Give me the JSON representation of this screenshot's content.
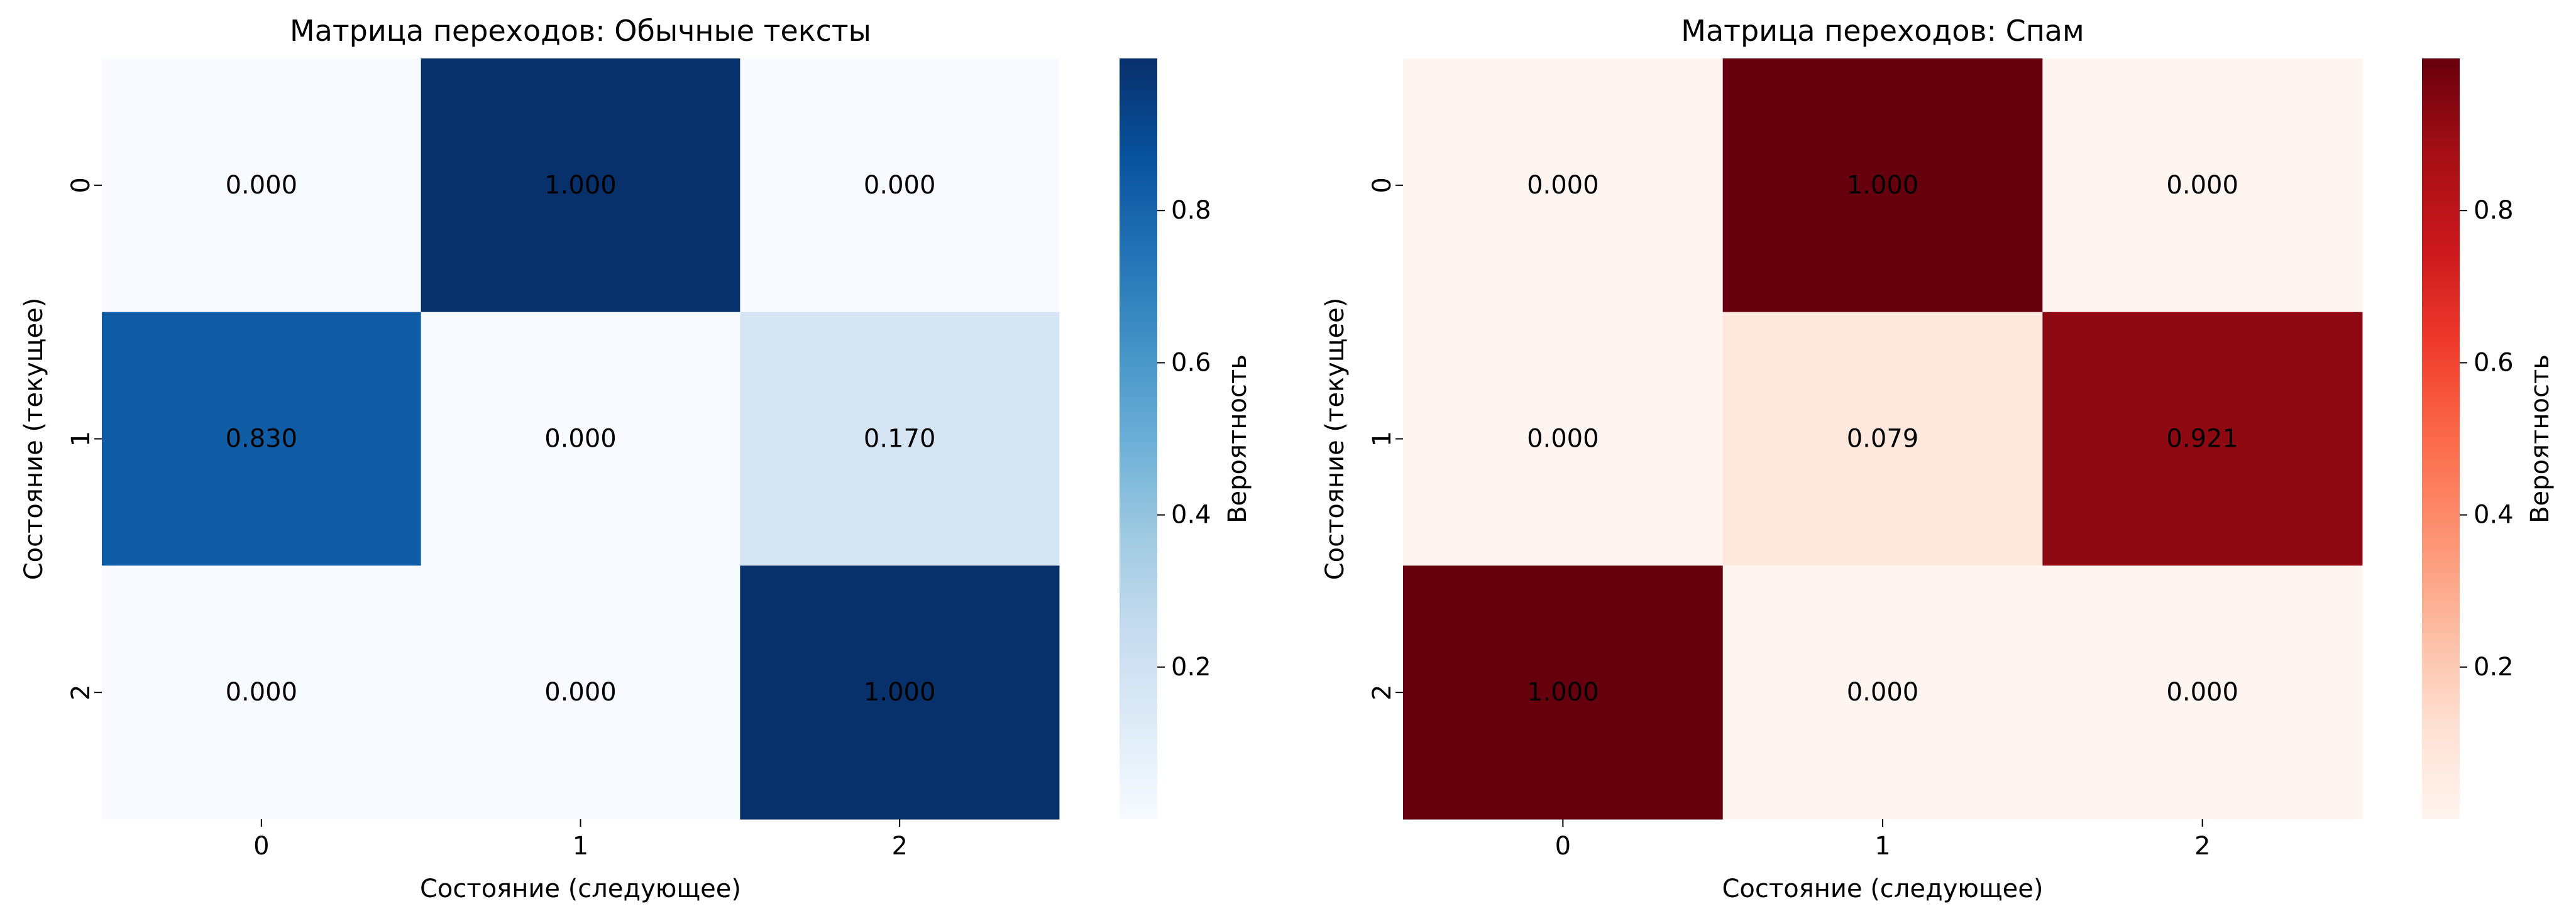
{
  "chart_data": [
    {
      "type": "heatmap",
      "title": "Матрица переходов: Обычные тексты",
      "xlabel": "Состояние (следующее)",
      "ylabel": "Состояние (текущее)",
      "x_categories": [
        "0",
        "1",
        "2"
      ],
      "y_categories": [
        "0",
        "1",
        "2"
      ],
      "values": [
        [
          0.0,
          1.0,
          0.0
        ],
        [
          0.83,
          0.0,
          0.17
        ],
        [
          0.0,
          0.0,
          1.0
        ]
      ],
      "annotations": [
        [
          "0.000",
          "1.000",
          "0.000"
        ],
        [
          "0.830",
          "0.000",
          "0.170"
        ],
        [
          "0.000",
          "0.000",
          "1.000"
        ]
      ],
      "colormap": "Blues",
      "colormap_low": "#f7fbff",
      "colormap_high": "#08306b",
      "colorbar": {
        "label": "Вероятность",
        "range": [
          0,
          1
        ],
        "ticks": [
          0.2,
          0.4,
          0.6,
          0.8
        ],
        "tick_labels": [
          "0.2",
          "0.4",
          "0.6",
          "0.8"
        ]
      }
    },
    {
      "type": "heatmap",
      "title": "Матрица переходов: Спам",
      "xlabel": "Состояние (следующее)",
      "ylabel": "Состояние (текущее)",
      "x_categories": [
        "0",
        "1",
        "2"
      ],
      "y_categories": [
        "0",
        "1",
        "2"
      ],
      "values": [
        [
          0.0,
          1.0,
          0.0
        ],
        [
          0.0,
          0.079,
          0.921
        ],
        [
          1.0,
          0.0,
          0.0
        ]
      ],
      "annotations": [
        [
          "0.000",
          "1.000",
          "0.000"
        ],
        [
          "0.000",
          "0.079",
          "0.921"
        ],
        [
          "1.000",
          "0.000",
          "0.000"
        ]
      ],
      "colormap": "Reds",
      "colormap_low": "#fff5f0",
      "colormap_high": "#67000d",
      "colorbar": {
        "label": "Вероятность",
        "range": [
          0,
          1
        ],
        "ticks": [
          0.2,
          0.4,
          0.6,
          0.8
        ],
        "tick_labels": [
          "0.2",
          "0.4",
          "0.6",
          "0.8"
        ]
      }
    }
  ]
}
